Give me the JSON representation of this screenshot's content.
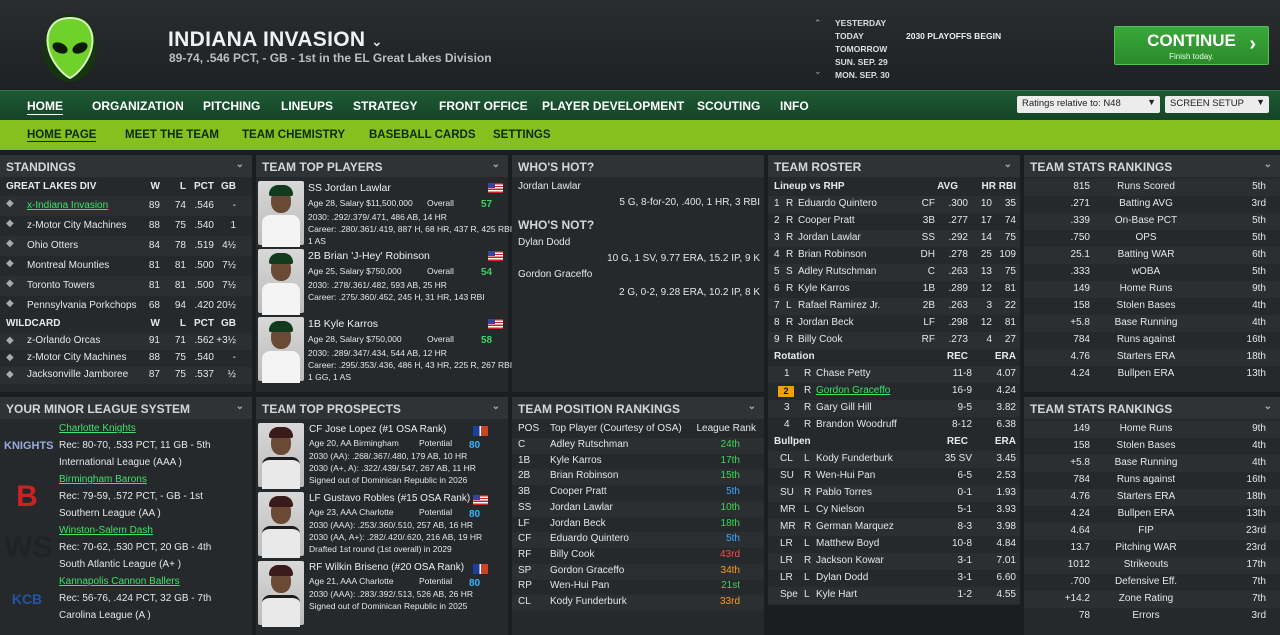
{
  "header": {
    "team_name": "INDIANA INVASION",
    "team_sub": "89-74, .546 PCT, - GB - 1st in the EL Great Lakes Division",
    "dates": [
      "YESTERDAY",
      "TODAY",
      "TOMORROW",
      "SUN. SEP. 29",
      "MON. SEP. 30"
    ],
    "date_event": "2030 PLAYOFFS BEGIN",
    "continue_label": "CONTINUE",
    "continue_sub": "Finish today."
  },
  "nav": {
    "items": [
      "HOME",
      "ORGANIZATION",
      "PITCHING",
      "LINEUPS",
      "STRATEGY",
      "FRONT OFFICE",
      "PLAYER DEVELOPMENT",
      "SCOUTING",
      "INFO"
    ],
    "ratings_select": "Ratings relative to: N48",
    "screen_setup": "SCREEN SETUP"
  },
  "subnav": {
    "items": [
      "HOME PAGE",
      "MEET THE TEAM",
      "TEAM CHEMISTRY",
      "BASEBALL CARDS",
      "SETTINGS"
    ]
  },
  "standings": {
    "title": "STANDINGS",
    "div_header": [
      "GREAT LAKES DIV",
      "W",
      "L",
      "PCT",
      "GB"
    ],
    "div_rows": [
      [
        "x-Indiana Invasion",
        "89",
        "74",
        ".546",
        "-"
      ],
      [
        "z-Motor City Machines",
        "88",
        "75",
        ".540",
        "1"
      ],
      [
        "Ohio Otters",
        "84",
        "78",
        ".519",
        "4½"
      ],
      [
        "Montreal Mounties",
        "81",
        "81",
        ".500",
        "7½"
      ],
      [
        "Toronto Towers",
        "81",
        "81",
        ".500",
        "7½"
      ],
      [
        "Pennsylvania Porkchops",
        "68",
        "94",
        ".420",
        "20½"
      ]
    ],
    "wc_header": [
      "WILDCARD",
      "W",
      "L",
      "PCT",
      "GB"
    ],
    "wc_rows": [
      [
        "z-Orlando Orcas",
        "91",
        "71",
        ".562",
        "+3½"
      ],
      [
        "z-Motor City Machines",
        "88",
        "75",
        ".540",
        "-"
      ],
      [
        "Jacksonville Jamboree",
        "87",
        "75",
        ".537",
        "½"
      ]
    ]
  },
  "top_players": {
    "title": "TEAM TOP PLAYERS",
    "overall_label": "Overall",
    "players": [
      {
        "name": "SS Jordan Lawlar",
        "info": "Age 28, Salary $11,500,000",
        "ovr": "57",
        "y2030": "2030: .292/.379/.471, 486 AB, 14 HR",
        "career": "Career: .280/.361/.419, 887 H, 68 HR, 437 R, 425 RBI",
        "extra": "1 AS"
      },
      {
        "name": "2B Brian 'J-Hey' Robinson",
        "info": "Age 25, Salary $750,000",
        "ovr": "54",
        "y2030": "2030: .278/.361/.482, 593 AB, 25 HR",
        "career": "Career: .275/.360/.452, 245 H, 31 HR, 143 RBI",
        "extra": ""
      },
      {
        "name": "1B Kyle Karros",
        "info": "Age 28, Salary $750,000",
        "ovr": "58",
        "y2030": "2030: .289/.347/.434, 544 AB, 12 HR",
        "career": "Career: .295/.353/.436, 486 H, 43 HR, 225 R, 267 RBI",
        "extra": "1 GG, 1 AS"
      }
    ]
  },
  "whos_hot": {
    "title": "WHO'S HOT?",
    "player": "Jordan Lawlar",
    "line": "5 G, 8-for-20, .400, 1 HR, 3 RBI"
  },
  "whos_not": {
    "title": "WHO'S NOT?",
    "rows": [
      {
        "player": "Dylan Dodd",
        "line": "10 G, 1 SV, 9.77 ERA, 15.2 IP, 9 K"
      },
      {
        "player": "Gordon Graceffo",
        "line": "2 G, 0-2, 9.28 ERA, 10.2 IP, 8 K"
      }
    ]
  },
  "roster": {
    "title": "TEAM ROSTER",
    "lineup_header": [
      "Lineup vs RHP",
      "AVG",
      "HR",
      "RBI"
    ],
    "lineup": [
      [
        "1",
        "R",
        "Eduardo Quintero",
        "CF",
        ".300",
        "10",
        "35"
      ],
      [
        "2",
        "R",
        "Cooper Pratt",
        "3B",
        ".277",
        "17",
        "74"
      ],
      [
        "3",
        "R",
        "Jordan Lawlar",
        "SS",
        ".292",
        "14",
        "75"
      ],
      [
        "4",
        "R",
        "Brian Robinson",
        "DH",
        ".278",
        "25",
        "109"
      ],
      [
        "5",
        "S",
        "Adley Rutschman",
        "C",
        ".263",
        "13",
        "75"
      ],
      [
        "6",
        "R",
        "Kyle Karros",
        "1B",
        ".289",
        "12",
        "81"
      ],
      [
        "7",
        "L",
        "Rafael Ramirez Jr.",
        "2B",
        ".263",
        "3",
        "22"
      ],
      [
        "8",
        "R",
        "Jordan Beck",
        "LF",
        ".298",
        "12",
        "81"
      ],
      [
        "9",
        "R",
        "Billy Cook",
        "RF",
        ".273",
        "4",
        "27"
      ]
    ],
    "rotation_header": [
      "Rotation",
      "REC",
      "ERA"
    ],
    "rotation": [
      [
        "1",
        "R",
        "Chase Petty",
        "11-8",
        "4.07"
      ],
      [
        "2",
        "R",
        "Gordon Graceffo",
        "16-9",
        "4.24"
      ],
      [
        "3",
        "R",
        "Gary Gill Hill",
        "9-5",
        "3.82"
      ],
      [
        "4",
        "R",
        "Brandon Woodruff",
        "8-12",
        "6.38"
      ]
    ],
    "bullpen_header": [
      "Bullpen",
      "REC",
      "ERA"
    ],
    "bullpen": [
      [
        "CL",
        "L",
        "Kody Funderburk",
        "35 SV",
        "3.45"
      ],
      [
        "SU",
        "R",
        "Wen-Hui Pan",
        "6-5",
        "2.53"
      ],
      [
        "SU",
        "R",
        "Pablo Torres",
        "0-1",
        "1.93"
      ],
      [
        "MR",
        "L",
        "Cy Nielson",
        "5-1",
        "3.93"
      ],
      [
        "MR",
        "R",
        "German Marquez",
        "8-3",
        "3.98"
      ],
      [
        "LR",
        "L",
        "Matthew Boyd",
        "10-8",
        "4.84"
      ],
      [
        "LR",
        "R",
        "Jackson Kowar",
        "3-1",
        "7.01"
      ],
      [
        "LR",
        "L",
        "Dylan Dodd",
        "3-1",
        "6.60"
      ],
      [
        "Spe",
        "L",
        "Kyle Hart",
        "1-2",
        "4.55"
      ]
    ]
  },
  "stats1": {
    "title": "TEAM STATS RANKINGS",
    "rows": [
      [
        "815",
        "Runs Scored",
        "5th"
      ],
      [
        ".271",
        "Batting AVG",
        "3rd"
      ],
      [
        ".339",
        "On-Base PCT",
        "5th"
      ],
      [
        ".750",
        "OPS",
        "5th"
      ],
      [
        "25.1",
        "Batting WAR",
        "6th"
      ],
      [
        ".333",
        "wOBA",
        "5th"
      ],
      [
        "149",
        "Home Runs",
        "9th"
      ],
      [
        "158",
        "Stolen Bases",
        "4th"
      ],
      [
        "+5.8",
        "Base Running",
        "4th"
      ],
      [
        "784",
        "Runs against",
        "16th"
      ],
      [
        "4.76",
        "Starters ERA",
        "18th"
      ],
      [
        "4.24",
        "Bullpen ERA",
        "13th"
      ]
    ]
  },
  "stats2": {
    "title": "TEAM STATS RANKINGS",
    "rows": [
      [
        "149",
        "Home Runs",
        "9th"
      ],
      [
        "158",
        "Stolen Bases",
        "4th"
      ],
      [
        "+5.8",
        "Base Running",
        "4th"
      ],
      [
        "784",
        "Runs against",
        "16th"
      ],
      [
        "4.76",
        "Starters ERA",
        "18th"
      ],
      [
        "4.24",
        "Bullpen ERA",
        "13th"
      ],
      [
        "4.64",
        "FIP",
        "23rd"
      ],
      [
        "13.7",
        "Pitching WAR",
        "23rd"
      ],
      [
        "1012",
        "Strikeouts",
        "17th"
      ],
      [
        ".700",
        "Defensive Eff.",
        "7th"
      ],
      [
        "+14.2",
        "Zone Rating",
        "7th"
      ],
      [
        "78",
        "Errors",
        "3rd"
      ]
    ]
  },
  "minor": {
    "title": "YOUR MINOR LEAGUE SYSTEM",
    "teams": [
      {
        "name": "Charlotte Knights",
        "rec": "Rec: 80-70, .533 PCT, 11 GB - 5th",
        "league": "International League (AAA )",
        "logo": "KNIGHTS"
      },
      {
        "name": "Birmingham Barons",
        "rec": "Rec: 79-59, .572 PCT, - GB - 1st",
        "league": "Southern League (AA )",
        "logo": "B"
      },
      {
        "name": "Winston-Salem Dash",
        "rec": "Rec: 70-62, .530 PCT, 20 GB - 4th",
        "league": "South Atlantic League (A+ )",
        "logo": "WS"
      },
      {
        "name": "Kannapolis Cannon Ballers",
        "rec": "Rec: 56-76, .424 PCT, 32 GB - 7th",
        "league": "Carolina League (A )",
        "logo": "KCB"
      }
    ]
  },
  "prospects": {
    "title": "TEAM TOP PROSPECTS",
    "potential_label": "Potential",
    "players": [
      {
        "name": "CF Jose Lopez (#1 OSA Rank)",
        "info": "Age 20, AA Birmingham",
        "pot": "80",
        "l1": "2030 (AA): .268/.367/.480, 179 AB, 10 HR",
        "l2": "2030 (A+, A): .322/.439/.547, 267 AB, 11 HR",
        "l3": "Signed out of Dominican Republic in 2026"
      },
      {
        "name": "LF Gustavo Robles (#15 OSA Rank)",
        "info": "Age 23, AAA Charlotte",
        "pot": "80",
        "l1": "2030 (AAA): .253/.360/.510, 257 AB, 16 HR",
        "l2": "2030 (AA, A+): .282/.420/.620, 216 AB, 19 HR",
        "l3": "Drafted 1st round (1st overall) in 2029"
      },
      {
        "name": "RF Wilkin Briseno (#20 OSA Rank)",
        "info": "Age 21, AAA Charlotte",
        "pot": "80",
        "l1": "2030 (AAA): .283/.392/.513, 526 AB, 26 HR",
        "l2": "Signed out of Dominican Republic in 2025",
        "l3": ""
      }
    ]
  },
  "positions": {
    "title": "TEAM POSITION RANKINGS",
    "header": [
      "POS",
      "Top Player (Courtesy of OSA)",
      "League Rank"
    ],
    "rows": [
      [
        "C",
        "Adley Rutschman",
        "24th"
      ],
      [
        "1B",
        "Kyle Karros",
        "17th"
      ],
      [
        "2B",
        "Brian Robinson",
        "15th"
      ],
      [
        "3B",
        "Cooper Pratt",
        "5th"
      ],
      [
        "SS",
        "Jordan Lawlar",
        "10th"
      ],
      [
        "LF",
        "Jordan Beck",
        "18th"
      ],
      [
        "CF",
        "Eduardo Quintero",
        "5th"
      ],
      [
        "RF",
        "Billy Cook",
        "43rd"
      ],
      [
        "SP",
        "Gordon Graceffo",
        "34th"
      ],
      [
        "RP",
        "Wen-Hui Pan",
        "21st"
      ],
      [
        "CL",
        "Kody Funderburk",
        "33rd"
      ]
    ]
  }
}
